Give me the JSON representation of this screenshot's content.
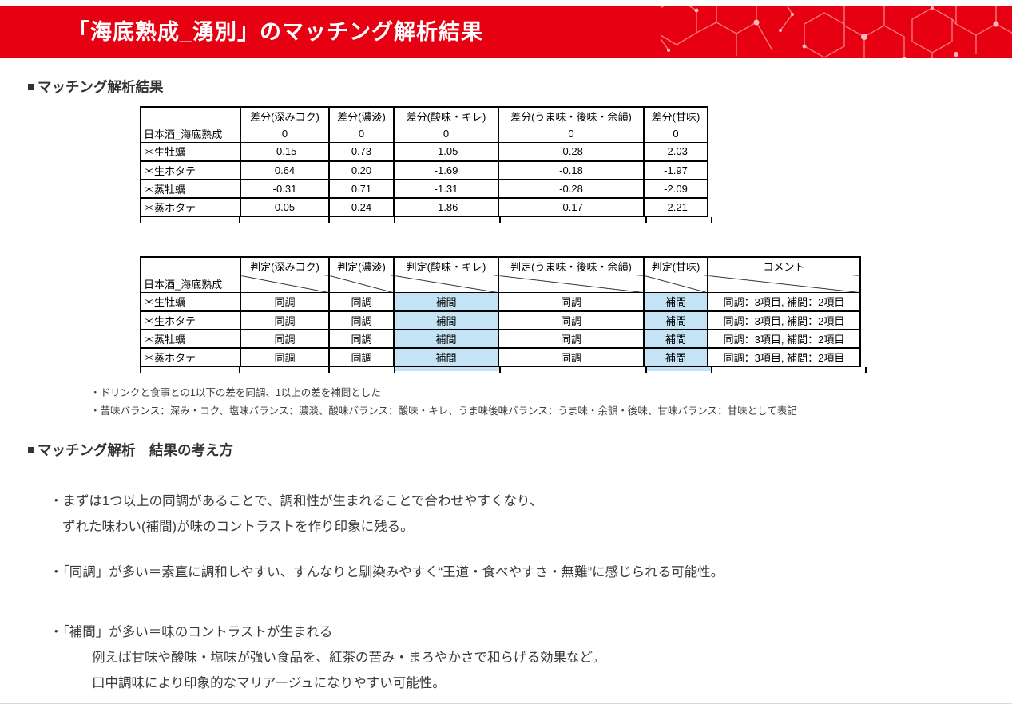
{
  "header": {
    "title": "「海底熟成_湧別」のマッチング解析結果",
    "accent_color": "#E60012"
  },
  "section1": {
    "heading": "マッチング解析結果"
  },
  "diff_table": {
    "columns": [
      "",
      "差分(深みコク)",
      "差分(濃淡)",
      "差分(酸味・キレ)",
      "差分(うま味・後味・余韻)",
      "差分(甘味)"
    ],
    "rows": [
      {
        "label": "日本酒_海底熟成",
        "values": [
          "0",
          "0",
          "0",
          "0",
          "0"
        ]
      },
      {
        "label": "＊生牡蠣",
        "values": [
          "-0.15",
          "0.73",
          "-1.05",
          "-0.28",
          "-2.03"
        ]
      },
      {
        "label": "＊生ホタテ",
        "values": [
          "0.64",
          "0.20",
          "-1.69",
          "-0.18",
          "-1.97"
        ]
      },
      {
        "label": "＊蒸牡蠣",
        "values": [
          "-0.31",
          "0.71",
          "-1.31",
          "-0.28",
          "-2.09"
        ]
      },
      {
        "label": "＊蒸ホタテ",
        "values": [
          "0.05",
          "0.24",
          "-1.86",
          "-0.17",
          "-2.21"
        ]
      }
    ]
  },
  "judge_table": {
    "columns": [
      "",
      "判定(深みコク)",
      "判定(濃淡)",
      "判定(酸味・キレ)",
      "判定(うま味・後味・余韻)",
      "判定(甘味)",
      "コメント"
    ],
    "diagonal_row_label": "日本酒_海底熟成",
    "highlight_value": "補間",
    "highlight_color": "#C4E4F5",
    "rows": [
      {
        "label": "＊生牡蠣",
        "values": [
          "同調",
          "同調",
          "補間",
          "同調",
          "補間"
        ],
        "comment": "同調：3項目, 補間：2項目"
      },
      {
        "label": "＊生ホタテ",
        "values": [
          "同調",
          "同調",
          "補間",
          "同調",
          "補間"
        ],
        "comment": "同調：3項目, 補間：2項目"
      },
      {
        "label": "＊蒸牡蠣",
        "values": [
          "同調",
          "同調",
          "補間",
          "同調",
          "補間"
        ],
        "comment": "同調：3項目, 補間：2項目"
      },
      {
        "label": "＊蒸ホタテ",
        "values": [
          "同調",
          "同調",
          "補間",
          "同調",
          "補間"
        ],
        "comment": "同調：3項目, 補間：2項目"
      }
    ]
  },
  "notes": [
    "・ドリンクと食事との1以下の差を同調、1以上の差を補間とした",
    "・苦味バランス：深み・コク、塩味バランス：濃淡、酸味バランス：酸味・キレ、うま味後味バランス：うま味・余韻・後味、甘味バランス：甘味として表記"
  ],
  "section2": {
    "heading": "マッチング解析　結果の考え方"
  },
  "bullets": [
    {
      "lines": [
        "・まずは1つ以上の同調があることで、調和性が生まれることで合わせやすくなり、",
        "ずれた味わい(補間)が味のコントラストを作り印象に残る。"
      ]
    },
    {
      "lines": [
        "・「同調」が多い＝素直に調和しやすい、すんなりと馴染みやすく“王道・食べやすさ・無難”に感じられる可能性。"
      ]
    },
    {
      "lines": [
        "・「補間」が多い＝味のコントラストが生まれる",
        "例えば甘味や酸味・塩味が強い食品を、紅茶の苦み・まろやかさで和らげる効果など。",
        "口中調味により印象的なマリアージュになりやすい可能性。"
      ]
    }
  ]
}
